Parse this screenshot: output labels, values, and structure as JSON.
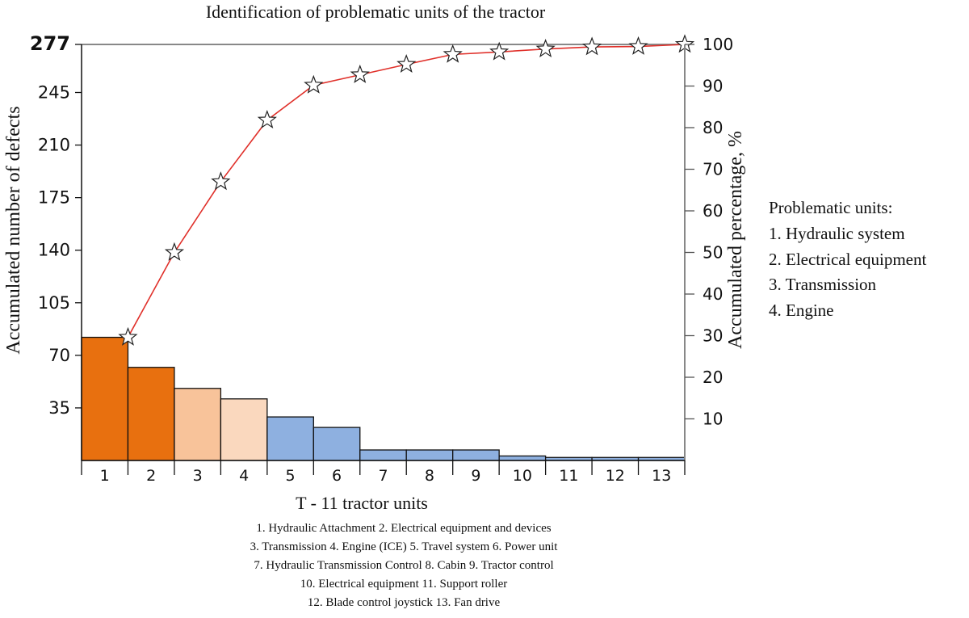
{
  "chart_data": {
    "type": "bar",
    "title": "Identification of problematic units of the tractor",
    "xlabel": "T - 11 tractor units",
    "ylabel": "Accumulated number of defects",
    "y2label": "Accumulated percentage, %",
    "categories": [
      "1",
      "2",
      "3",
      "4",
      "5",
      "6",
      "7",
      "8",
      "9",
      "10",
      "11",
      "12",
      "13"
    ],
    "values": [
      82,
      62,
      48,
      41,
      29,
      22,
      7,
      7,
      7,
      3,
      2,
      2,
      2
    ],
    "bar_colors": [
      "#E8700F",
      "#E8700F",
      "#F8C39A",
      "#FAD8BE",
      "#8EB0E0",
      "#8EB0E0",
      "#8EB0E0",
      "#8EB0E0",
      "#8EB0E0",
      "#8EB0E0",
      "#8EB0E0",
      "#8EB0E0",
      "#8EB0E0"
    ],
    "cumulative_percentage": [
      29.6,
      50,
      67,
      81.8,
      90.2,
      92.7,
      95.2,
      97.6,
      98.2,
      98.9,
      99.4,
      99.5,
      100
    ],
    "ylim": [
      0,
      277
    ],
    "y_ticks": [
      35,
      70,
      105,
      140,
      175,
      210,
      245,
      277
    ],
    "y2lim": [
      0,
      100
    ],
    "y2_ticks": [
      10,
      20,
      30,
      40,
      50,
      60,
      70,
      80,
      90,
      100
    ],
    "line_color": "#E0302A",
    "marker": "star"
  },
  "legend": {
    "title": "Problematic units:",
    "items": [
      "1. Hydraulic system",
      "2. Electrical equipment",
      "3. Transmission",
      "4. Engine"
    ]
  },
  "caption": {
    "lines": [
      "1. Hydraulic Attachment 2. Electrical equipment and devices",
      "3. Transmission 4. Engine (ICE) 5. Travel system 6. Power unit",
      "7. Hydraulic Transmission Control 8. Cabin 9. Tractor control",
      "10. Electrical equipment 11. Support roller",
      "12. Blade control joystick 13. Fan drive"
    ]
  }
}
